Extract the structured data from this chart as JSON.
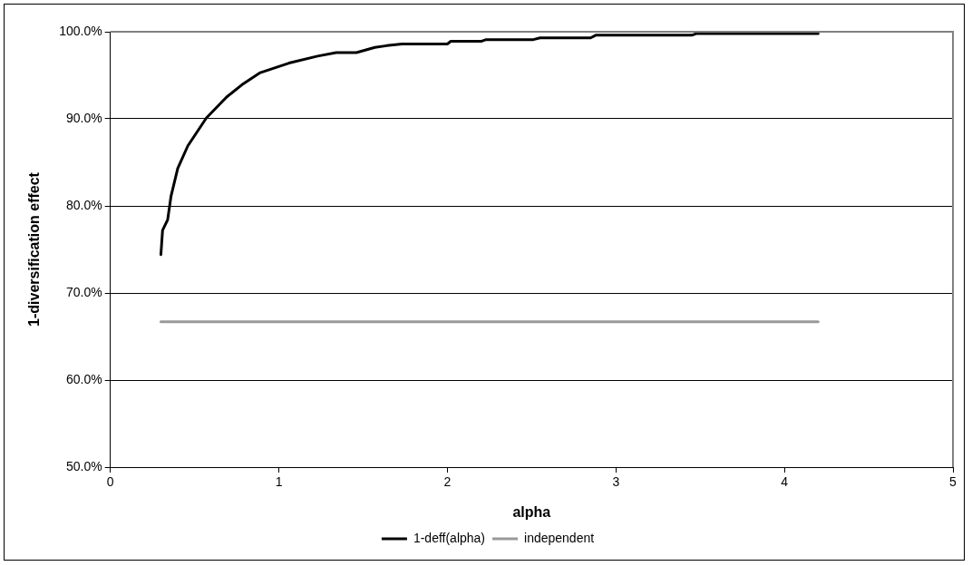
{
  "chart_data": {
    "type": "line",
    "xlabel": "alpha",
    "ylabel": "1-diversification effect",
    "xlim": [
      0,
      5
    ],
    "xticks": [
      0,
      1,
      2,
      3,
      4,
      5
    ],
    "ylim": [
      50,
      100
    ],
    "yticks": [
      {
        "value": 50,
        "label": "50.0%"
      },
      {
        "value": 60,
        "label": "60.0%"
      },
      {
        "value": 70,
        "label": "70.0%"
      },
      {
        "value": 80,
        "label": "80.0%"
      },
      {
        "value": 90,
        "label": "90.0%"
      },
      {
        "value": 100,
        "label": "100.0%"
      }
    ],
    "grid": "y",
    "legend": "bottom",
    "marker": "none",
    "line_style": "solid",
    "series": [
      {
        "name": "1-deff(alpha)",
        "color": "#000000",
        "x": [
          0.3,
          0.31,
          0.34,
          0.36,
          0.4,
          0.46,
          0.57,
          0.69,
          0.78,
          0.89,
          1.06,
          1.23,
          1.34,
          1.46,
          1.57,
          1.64,
          1.73,
          2.0,
          2.02,
          2.2,
          2.23,
          2.51,
          2.55,
          2.85,
          2.88,
          3.45,
          3.48,
          4.2
        ],
        "values": [
          74.4,
          77.2,
          78.4,
          81.1,
          84.3,
          86.9,
          90.1,
          92.5,
          93.9,
          95.3,
          96.4,
          97.2,
          97.6,
          97.6,
          98.2,
          98.4,
          98.6,
          98.6,
          98.9,
          98.9,
          99.1,
          99.1,
          99.3,
          99.3,
          99.6,
          99.6,
          99.8,
          99.8
        ]
      },
      {
        "name": "independent",
        "color": "#999999",
        "x": [
          0.3,
          4.2
        ],
        "values": [
          66.7,
          66.7
        ]
      }
    ]
  }
}
